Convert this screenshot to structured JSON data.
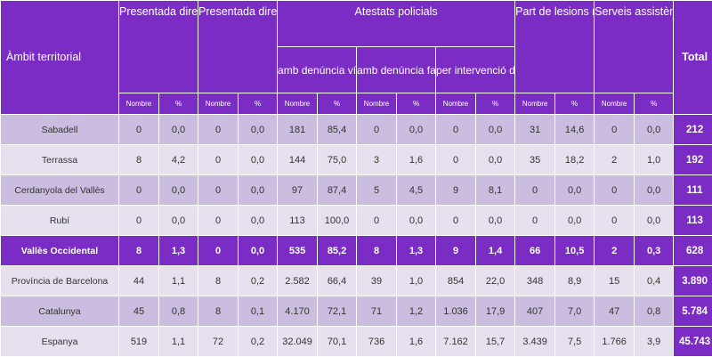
{
  "headers": {
    "area": "Àmbit territorial",
    "presentada_victima": "Presentada directament per la víctima al jutjat",
    "presentada_familiars": "Presentada directament per familiars",
    "atestats": "Atestats policials",
    "amb_denuncia_victima": "amb denúncia víctima",
    "amb_denuncia_familiar": "amb denúncia familiar",
    "per_intervencio": "per intervenció directa policial",
    "part_lesions": "Part de lesions rebut directament al jutjat",
    "serveis": "Serveis assistència-Tercers en general",
    "total": "Total",
    "nombre": "Nombre",
    "pct": "%"
  },
  "rows": [
    {
      "area": "Sabadell",
      "style": "mid",
      "v": [
        "0",
        "0,0",
        "0",
        "0,0",
        "181",
        "85,4",
        "0",
        "0,0",
        "0",
        "0,0",
        "31",
        "14,6",
        "0",
        "0,0"
      ],
      "total": "212"
    },
    {
      "area": "Terrassa",
      "style": "light",
      "v": [
        "8",
        "4,2",
        "0",
        "0,0",
        "144",
        "75,0",
        "3",
        "1,6",
        "0",
        "0,0",
        "35",
        "18,2",
        "2",
        "1,0"
      ],
      "total": "192"
    },
    {
      "area": "Cerdanyola del Vallès",
      "style": "mid",
      "v": [
        "0",
        "0,0",
        "0",
        "0,0",
        "97",
        "87,4",
        "5",
        "4,5",
        "9",
        "8,1",
        "0",
        "0,0",
        "0",
        "0,0"
      ],
      "total": "111"
    },
    {
      "area": "Rubí",
      "style": "light",
      "v": [
        "0",
        "0,0",
        "0",
        "0,0",
        "113",
        "100,0",
        "0",
        "0,0",
        "0",
        "0,0",
        "0",
        "0,0",
        "0",
        "0,0"
      ],
      "total": "113"
    },
    {
      "area": "Vallès Occidental",
      "style": "highlight",
      "v": [
        "8",
        "1,3",
        "0",
        "0,0",
        "535",
        "85,2",
        "8",
        "1,3",
        "9",
        "1,4",
        "66",
        "10,5",
        "2",
        "0,3"
      ],
      "total": "628"
    },
    {
      "area": "Província de Barcelona",
      "style": "light",
      "v": [
        "44",
        "1,1",
        "8",
        "0,2",
        "2.582",
        "66,4",
        "39",
        "1,0",
        "854",
        "22,0",
        "348",
        "8,9",
        "15",
        "0,4"
      ],
      "total": "3.890"
    },
    {
      "area": "Catalunya",
      "style": "mid",
      "v": [
        "45",
        "0,8",
        "8",
        "0,1",
        "4.170",
        "72,1",
        "71",
        "1,2",
        "1.036",
        "17,9",
        "407",
        "7,0",
        "47",
        "0,8"
      ],
      "total": "5.784"
    },
    {
      "area": "Espanya",
      "style": "light",
      "v": [
        "519",
        "1,1",
        "72",
        "0,2",
        "32.049",
        "70,1",
        "736",
        "1,6",
        "7.162",
        "15,7",
        "3.439",
        "7,5",
        "1.766",
        "3,9"
      ],
      "total": "45.743"
    }
  ]
}
